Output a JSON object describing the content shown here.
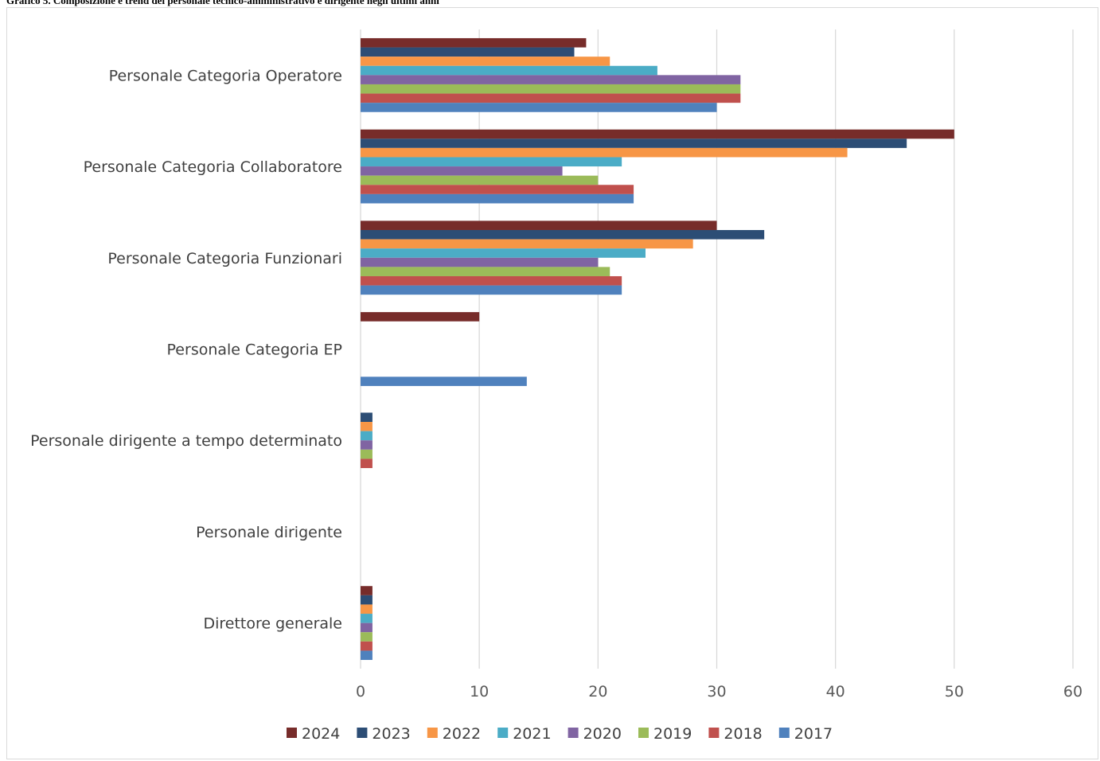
{
  "caption": "Grafico 5. Composizione e trend del personale tecnico-amministrativo e dirigente negli ultimi anni",
  "chart_data": {
    "type": "bar",
    "orientation": "horizontal",
    "title": "Grafico 5. Composizione e trend del personale tecnico-amministrativo e dirigente negli ultimi anni",
    "xlabel": "",
    "ylabel": "",
    "xlim": [
      0,
      60
    ],
    "xticks": [
      0,
      10,
      20,
      30,
      40,
      50,
      60
    ],
    "grid": "vertical",
    "legend": "bottom",
    "categories": [
      "Personale Categoria Operatore",
      "Personale Categoria Collaboratore",
      "Personale Categoria Funzionari",
      "Personale Categoria EP",
      "Personale dirigente a tempo determinato",
      "Personale dirigente",
      "Direttore generale"
    ],
    "series": [
      {
        "name": "2024",
        "color": "#772c2a",
        "values": [
          19,
          50,
          30,
          10,
          0,
          0,
          1
        ]
      },
      {
        "name": "2023",
        "color": "#2c4d75",
        "values": [
          18,
          46,
          34,
          0,
          1,
          0,
          1
        ]
      },
      {
        "name": "2022",
        "color": "#f79646",
        "values": [
          21,
          41,
          28,
          0,
          1,
          0,
          1
        ]
      },
      {
        "name": "2021",
        "color": "#4bacc6",
        "values": [
          25,
          22,
          24,
          0,
          1,
          0,
          1
        ]
      },
      {
        "name": "2020",
        "color": "#8064a2",
        "values": [
          32,
          17,
          20,
          0,
          1,
          0,
          1
        ]
      },
      {
        "name": "2019",
        "color": "#9bbb59",
        "values": [
          32,
          20,
          21,
          0,
          1,
          0,
          1
        ]
      },
      {
        "name": "2018",
        "color": "#c0504d",
        "values": [
          32,
          23,
          22,
          0,
          1,
          0,
          1
        ]
      },
      {
        "name": "2017",
        "color": "#4f81bd",
        "values": [
          30,
          23,
          22,
          14,
          0,
          0,
          1
        ]
      }
    ]
  }
}
